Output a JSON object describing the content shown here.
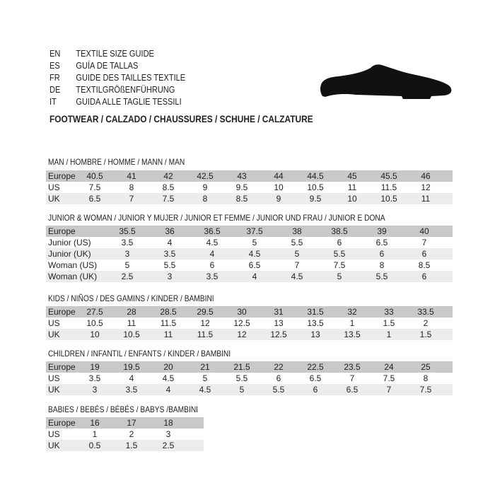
{
  "header": {
    "languages": [
      {
        "code": "EN",
        "text": "TEXTILE SIZE GUIDE"
      },
      {
        "code": "ES",
        "text": "GUÍA DE TALLAS"
      },
      {
        "code": "FR",
        "text": "GUIDE DES TAILLES TEXTILE"
      },
      {
        "code": "DE",
        "text": "TEXTILGRÖßENFÜHRUNG"
      },
      {
        "code": "IT",
        "text": "GUIDA ALLE TAGLIE TESSILI"
      }
    ],
    "footwear": "FOOTWEAR / CALZADO / CHAUSSURES / SCHUHE / CALZATURE",
    "icon": "shoe-icon"
  },
  "sections": [
    {
      "title": "MAN / HOMBRE / HOMME / MANN / MAN",
      "rows": [
        {
          "label": "Europe",
          "values": [
            "40.5",
            "41",
            "42",
            "42.5",
            "43",
            "44",
            "44.5",
            "45",
            "45.5",
            "46"
          ]
        },
        {
          "label": "US",
          "values": [
            "7.5",
            "8",
            "8.5",
            "9",
            "9.5",
            "10",
            "10.5",
            "11",
            "11.5",
            "12"
          ]
        },
        {
          "label": "UK",
          "values": [
            "6.5",
            "7",
            "7.5",
            "8",
            "8.5",
            "9",
            "9.5",
            "10",
            "10.5",
            "11"
          ]
        }
      ]
    },
    {
      "title": "JUNIOR & WOMAN / JUNIOR Y MUJER / JUNIOR ET FEMME / JUNIOR UND FRAU / JUNIOR E DONA",
      "rows": [
        {
          "label": "Europe",
          "values": [
            "35.5",
            "36",
            "36.5",
            "37.5",
            "38",
            "38.5",
            "39",
            "40"
          ]
        },
        {
          "label": "Junior (US)",
          "values": [
            "3.5",
            "4",
            "4.5",
            "5",
            "5.5",
            "6",
            "6.5",
            "7"
          ]
        },
        {
          "label": "Junior (UK)",
          "values": [
            "3",
            "3.5",
            "4",
            "4.5",
            "5",
            "5.5",
            "6",
            "6"
          ]
        },
        {
          "label": "Woman (US)",
          "values": [
            "5",
            "5.5",
            "6",
            "6.5",
            "7",
            "7.5",
            "8",
            "8.5"
          ]
        },
        {
          "label": "Woman (UK)",
          "values": [
            "2.5",
            "3",
            "3.5",
            "4",
            "4.5",
            "5",
            "5.5",
            "6"
          ]
        }
      ]
    },
    {
      "title": "KIDS / NIÑOS / DES GAMINS / KINDER / BAMBINI",
      "rows": [
        {
          "label": "Europe",
          "values": [
            "27.5",
            "28",
            "28.5",
            "29.5",
            "30",
            "31",
            "31.5",
            "32",
            "33",
            "33.5"
          ]
        },
        {
          "label": "US",
          "values": [
            "10.5",
            "11",
            "11.5",
            "12",
            "12.5",
            "13",
            "13.5",
            "1",
            "1.5",
            "2"
          ]
        },
        {
          "label": "UK",
          "values": [
            "10",
            "10.5",
            "11",
            "11.5",
            "12",
            "12.5",
            "13",
            "13.5",
            "1",
            "1.5"
          ]
        }
      ]
    },
    {
      "title": "CHILDREN / INFANTIL / ENFANTS / KINDER / BAMBINI",
      "rows": [
        {
          "label": "Europe",
          "values": [
            "19",
            "19.5",
            "20",
            "21",
            "21.5",
            "22",
            "22.5",
            "23.5",
            "24",
            "25"
          ]
        },
        {
          "label": "US",
          "values": [
            "3.5",
            "4",
            "4.5",
            "5",
            "5.5",
            "6",
            "6.5",
            "7",
            "7.5",
            "8"
          ]
        },
        {
          "label": "UK",
          "values": [
            "3",
            "3.5",
            "4",
            "4.5",
            "5",
            "5.5",
            "6",
            "6.5",
            "7",
            "7.5"
          ]
        }
      ]
    },
    {
      "title": "BABIES  / BEBÉS / BÉBÉS / BABYS /BAMBINI",
      "rows": [
        {
          "label": "Europe",
          "values": [
            "16",
            "17",
            "18"
          ]
        },
        {
          "label": "US",
          "values": [
            "1",
            "2",
            "3"
          ]
        },
        {
          "label": "UK",
          "values": [
            "0.5",
            "1.5",
            "2.5"
          ]
        }
      ]
    }
  ]
}
